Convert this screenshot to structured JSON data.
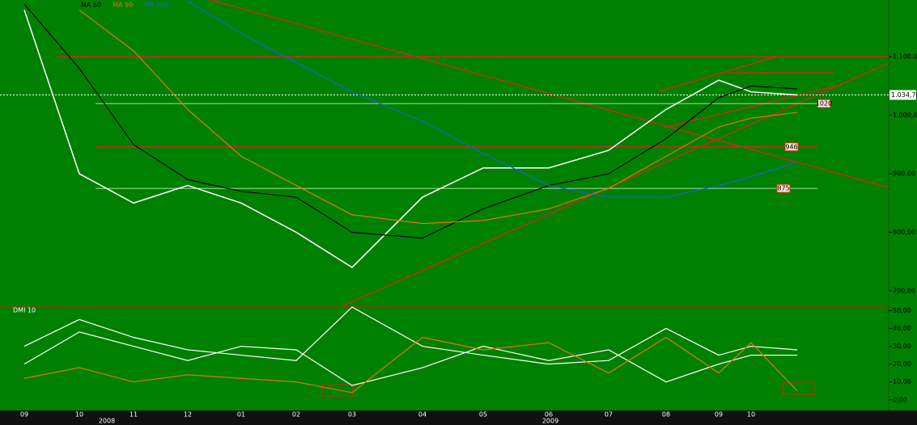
{
  "chart_data": [
    {
      "type": "line",
      "categories": [
        "09",
        "10",
        "11",
        "12",
        "01",
        "02",
        "03",
        "04",
        "05",
        "06",
        "07",
        "08",
        "09",
        "10",
        null
      ],
      "year_labels": [
        "2008",
        "2009"
      ],
      "series": [
        {
          "color": "#ffffff",
          "values": [
            1180,
            900,
            850,
            880,
            850,
            800,
            740,
            860,
            910,
            910,
            940,
            1010,
            1060,
            1040,
            1034.7
          ]
        },
        {
          "name": "MA 50",
          "color": "#000000",
          "values": [
            1190,
            1080,
            950,
            890,
            870,
            860,
            800,
            790,
            840,
            880,
            900,
            960,
            1030,
            1050,
            1045
          ]
        },
        {
          "name": "MA 90",
          "color": "#e07a00",
          "values": [
            null,
            1180,
            1110,
            1010,
            930,
            880,
            830,
            815,
            820,
            840,
            875,
            930,
            980,
            995,
            1005
          ]
        },
        {
          "name": "MA 200",
          "color": "#1f5fd6",
          "values": [
            null,
            null,
            null,
            1195,
            1140,
            1090,
            1040,
            990,
            935,
            880,
            860,
            860,
            880,
            895,
            920
          ]
        }
      ],
      "last_value": {
        "value": 1034.7,
        "label": "1.034,70"
      },
      "levels": [
        1020,
        946,
        875
      ],
      "ylim": [
        675,
        1197
      ],
      "yticks": [
        {
          "value": 700,
          "label": "700,00"
        },
        {
          "value": 800,
          "label": "800,00"
        },
        {
          "value": 900,
          "label": "900,00"
        },
        {
          "value": 1000,
          "label": "1.000,00"
        },
        {
          "value": 1100,
          "label": "1.100,00"
        }
      ]
    },
    {
      "type": "line",
      "title": "DMI 10",
      "series": [
        {
          "color": "#ffffff",
          "values": [
            30,
            45,
            35,
            28,
            25,
            22,
            52,
            30,
            25,
            20,
            22,
            40,
            25,
            30,
            28
          ]
        },
        {
          "color": "#ffffff",
          "values": [
            20,
            38,
            30,
            22,
            30,
            28,
            8,
            18,
            30,
            22,
            28,
            10,
            20,
            25,
            25
          ]
        },
        {
          "color": "#e07a00",
          "values": [
            12,
            18,
            10,
            14,
            12,
            10,
            4,
            35,
            28,
            32,
            15,
            35,
            15,
            32,
            5
          ]
        }
      ],
      "ylim": [
        -6,
        52
      ],
      "yticks": [
        {
          "value": 0,
          "label": "0,00"
        },
        {
          "value": 10,
          "label": "10,00"
        },
        {
          "value": 20,
          "label": "20,00"
        },
        {
          "value": 30,
          "label": "30,00"
        },
        {
          "value": 40,
          "label": "40,00"
        },
        {
          "value": 50,
          "label": "50,00"
        }
      ]
    }
  ]
}
